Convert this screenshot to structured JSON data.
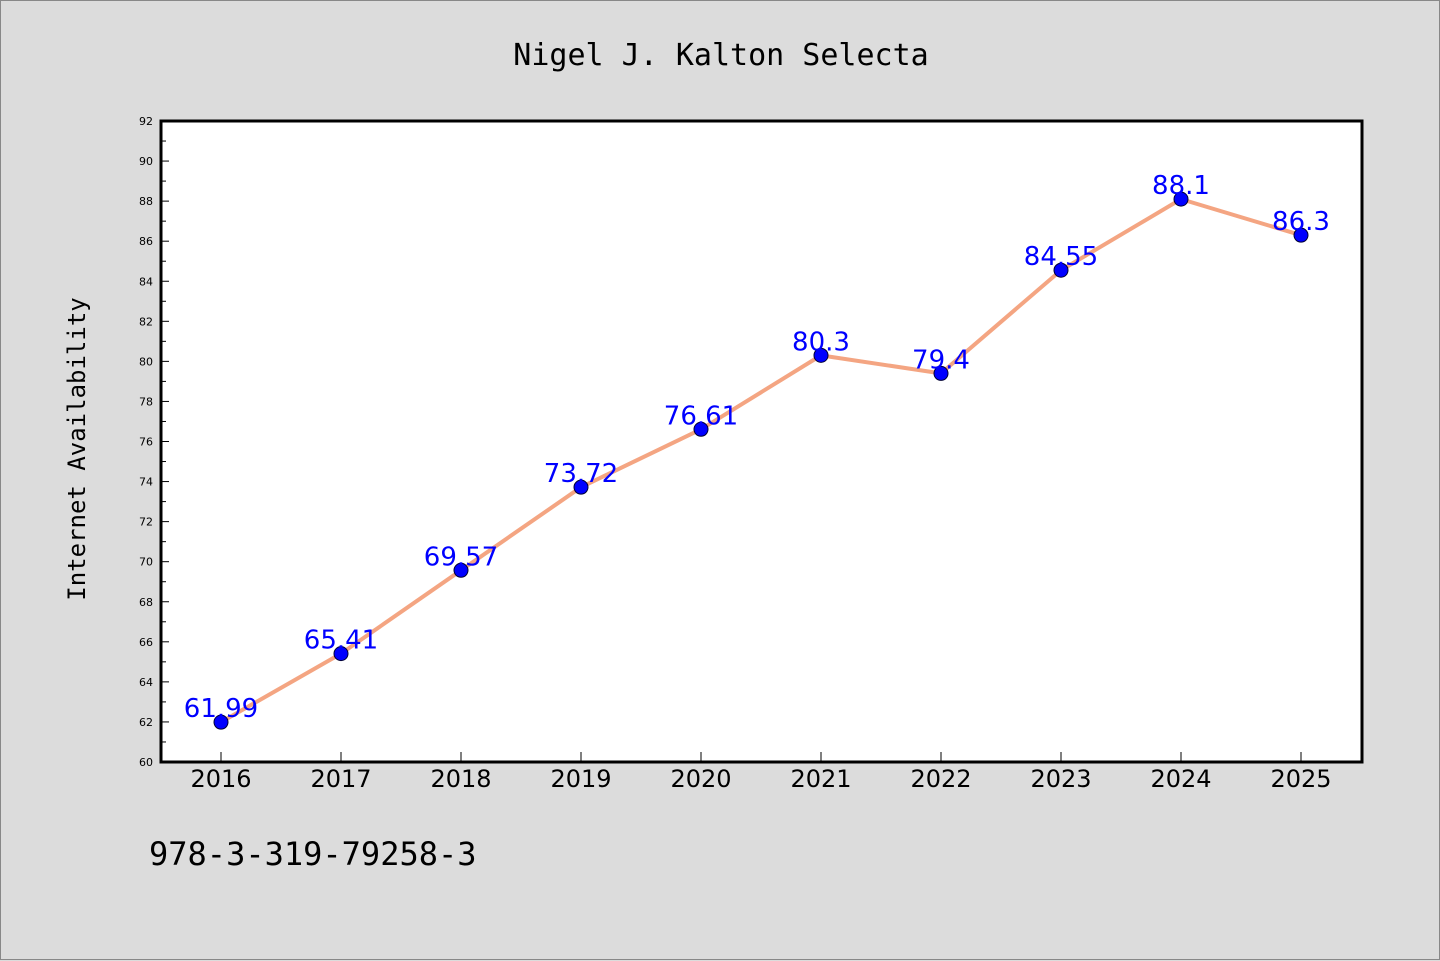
{
  "page": {
    "background_color": "#dcdcdc",
    "footer_text": "978-3-319-79258-3"
  },
  "chart_data": {
    "type": "line",
    "title": "Nigel J. Kalton Selecta",
    "xlabel": "",
    "ylabel": "Internet Availability",
    "categories": [
      "2016",
      "2017",
      "2018",
      "2019",
      "2020",
      "2021",
      "2022",
      "2023",
      "2024",
      "2025"
    ],
    "series": [
      {
        "values": [
          61.99,
          65.41,
          69.57,
          73.72,
          76.61,
          80.3,
          79.4,
          84.55,
          88.1,
          86.3
        ],
        "line_color": "#f4a582",
        "marker_color": "#0000ff"
      }
    ],
    "data_labels": [
      "61.99",
      "65.41",
      "69.57",
      "73.72",
      "76.61",
      "80.3",
      "79.4",
      "84.55",
      "88.1",
      "86.3"
    ],
    "data_label_color": "#0000ff",
    "ylim": [
      60,
      92
    ],
    "y_major_step": 2,
    "y_minor_step": 1,
    "grid": false,
    "legend": "none",
    "plot_background": "#ffffff"
  }
}
